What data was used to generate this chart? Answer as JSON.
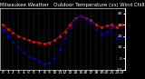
{
  "title": "Milwaukee Weather   Outdoor Temperature (vs) Wind Chill (Last 24 Hours)",
  "temp": [
    30,
    26,
    23,
    20,
    18,
    16,
    15,
    14,
    13,
    14,
    16,
    20,
    24,
    30,
    36,
    38,
    36,
    34,
    30,
    28,
    29,
    30,
    28,
    30
  ],
  "windchill": [
    25,
    20,
    15,
    10,
    5,
    2,
    0,
    -2,
    -5,
    -4,
    0,
    8,
    18,
    28,
    35,
    38,
    35,
    32,
    26,
    22,
    24,
    28,
    18,
    20
  ],
  "temp_color": "#ff0000",
  "windchill_color": "#0000cc",
  "bg_color": "#000000",
  "plot_bg": "#000000",
  "text_color": "#ffffff",
  "grid_color": "#888888",
  "ylim": [
    -10,
    45
  ],
  "ytick_vals": [
    40,
    30,
    20,
    10,
    0,
    -10
  ],
  "ytick_labels": [
    "40",
    "30",
    "20",
    "10",
    "0",
    "-10"
  ],
  "title_fontsize": 4.0,
  "tick_fontsize": 3.2,
  "line_width": 0.9,
  "marker_size": 2.2
}
